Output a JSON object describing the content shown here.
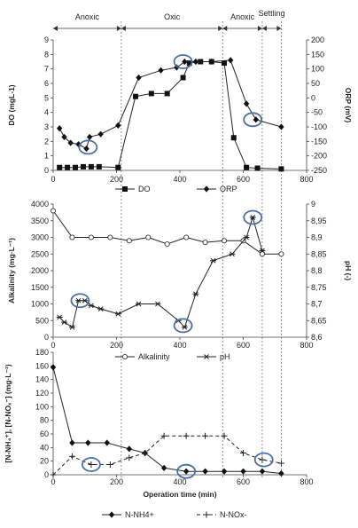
{
  "phases": [
    {
      "label": "Anoxic",
      "start": 0,
      "end": 215
    },
    {
      "label": "Oxic",
      "start": 215,
      "end": 535
    },
    {
      "label": "Anoxic",
      "start": 535,
      "end": 660
    },
    {
      "label": "Settling",
      "start": 660,
      "end": 720
    }
  ],
  "chart_data": [
    {
      "type": "line",
      "xlim": [
        0,
        800
      ],
      "xticks": [
        0,
        200,
        400,
        600,
        800
      ],
      "xlabel": "",
      "ylabel": "DO (mgL-1)",
      "ylim": [
        0,
        9
      ],
      "yticks": [
        0,
        1,
        2,
        3,
        4,
        5,
        6,
        7,
        8,
        9
      ],
      "y2label": "ORP (mV)",
      "y2lim": [
        -250,
        200
      ],
      "y2ticks": [
        -250,
        -200,
        -150,
        -100,
        -50,
        0,
        50,
        100,
        150,
        200
      ],
      "series": [
        {
          "name": "DO",
          "axis": "left",
          "marker": "square",
          "style": "solid",
          "x": [
            20,
            45,
            70,
            95,
            120,
            145,
            205,
            260,
            310,
            360,
            410,
            430,
            465,
            500,
            540,
            570,
            610,
            645,
            720
          ],
          "y": [
            0.2,
            0.2,
            0.2,
            0.25,
            0.25,
            0.25,
            0.2,
            5.1,
            5.3,
            5.3,
            6.4,
            7.4,
            7.5,
            7.5,
            7.4,
            2.25,
            0.2,
            0.15,
            0.1
          ]
        },
        {
          "name": "ORP",
          "axis": "right",
          "marker": "diamond",
          "style": "solid",
          "x": [
            20,
            35,
            55,
            80,
            105,
            115,
            150,
            205,
            270,
            340,
            390,
            415,
            450,
            500,
            560,
            610,
            640,
            720
          ],
          "y": [
            -105,
            -135,
            -155,
            -160,
            -175,
            -135,
            -125,
            -95,
            70,
            95,
            105,
            125,
            125,
            125,
            130,
            -20,
            -75,
            -100
          ]
        }
      ],
      "highlights": [
        {
          "x": 110,
          "y": -170,
          "axis": "right"
        },
        {
          "x": 410,
          "y": 125,
          "axis": "right"
        },
        {
          "x": 630,
          "y": -75,
          "axis": "right"
        }
      ]
    },
    {
      "type": "line",
      "xlim": [
        0,
        800
      ],
      "xticks": [
        0,
        200,
        400,
        600,
        800
      ],
      "xlabel": "",
      "ylabel": "Alkalinity (mg·L⁻¹)",
      "ylim": [
        0,
        4000
      ],
      "yticks": [
        0,
        500,
        1000,
        1500,
        2000,
        2500,
        3000,
        3500,
        4000
      ],
      "y2label": "pH (-)",
      "y2lim": [
        8.6,
        9.0
      ],
      "y2ticks": [
        8.6,
        8.65,
        8.7,
        8.75,
        8.8,
        8.85,
        8.9,
        8.95,
        9.0
      ],
      "y2ticklabels": [
        "8,6",
        "8,65",
        "8,7",
        "8,75",
        "8,8",
        "8,85",
        "8,9",
        "8,95",
        "9"
      ],
      "series": [
        {
          "name": "Alkalinity",
          "axis": "left",
          "marker": "circle",
          "style": "solid",
          "x": [
            0,
            60,
            120,
            180,
            240,
            300,
            360,
            420,
            480,
            540,
            600,
            660,
            720
          ],
          "y": [
            3800,
            3000,
            3000,
            3000,
            2900,
            3000,
            2800,
            3000,
            2850,
            2900,
            2900,
            2500,
            2500
          ]
        },
        {
          "name": "pH",
          "axis": "right",
          "marker": "star",
          "style": "solid",
          "x": [
            20,
            35,
            60,
            80,
            100,
            120,
            150,
            205,
            270,
            330,
            395,
            415,
            450,
            505,
            565,
            610,
            630,
            660
          ],
          "y": [
            8.66,
            8.645,
            8.63,
            8.71,
            8.71,
            8.695,
            8.685,
            8.67,
            8.7,
            8.7,
            8.65,
            8.63,
            8.73,
            8.83,
            8.85,
            8.9,
            8.96,
            8.86
          ]
        }
      ],
      "highlights": [
        {
          "x": 85,
          "y": 8.71,
          "axis": "right"
        },
        {
          "x": 410,
          "y": 8.635,
          "axis": "right"
        },
        {
          "x": 630,
          "y": 8.96,
          "axis": "right"
        }
      ]
    },
    {
      "type": "line",
      "xlim": [
        0,
        800
      ],
      "xticks": [
        0,
        200,
        400,
        600,
        800
      ],
      "xlabel": "Operation time (min)",
      "ylabel": "[N-NH₄⁺], [N-NOₓ⁻] (mg·L⁻¹)",
      "ylim": [
        0,
        180
      ],
      "yticks": [
        0,
        20,
        40,
        60,
        80,
        100,
        120,
        140,
        160,
        180
      ],
      "series": [
        {
          "name": "N-NH4+",
          "axis": "left",
          "marker": "diamond",
          "style": "solid",
          "x": [
            0,
            60,
            110,
            170,
            240,
            290,
            350,
            420,
            480,
            540,
            600,
            660,
            720
          ],
          "y": [
            158,
            47,
            47,
            47,
            38,
            32,
            10,
            5,
            5,
            5,
            5,
            5,
            2
          ]
        },
        {
          "name": "N-NOx-",
          "axis": "left",
          "marker": "plus",
          "style": "dashed",
          "x": [
            0,
            60,
            120,
            180,
            240,
            290,
            350,
            420,
            480,
            540,
            600,
            660,
            720
          ],
          "y": [
            0,
            27,
            15,
            15,
            25,
            32,
            57,
            57,
            57,
            57,
            32,
            22,
            17
          ]
        }
      ],
      "highlights": [
        {
          "x": 120,
          "y": 15,
          "axis": "left"
        },
        {
          "x": 420,
          "y": 5,
          "axis": "left"
        },
        {
          "x": 665,
          "y": 22,
          "axis": "left"
        }
      ]
    }
  ]
}
